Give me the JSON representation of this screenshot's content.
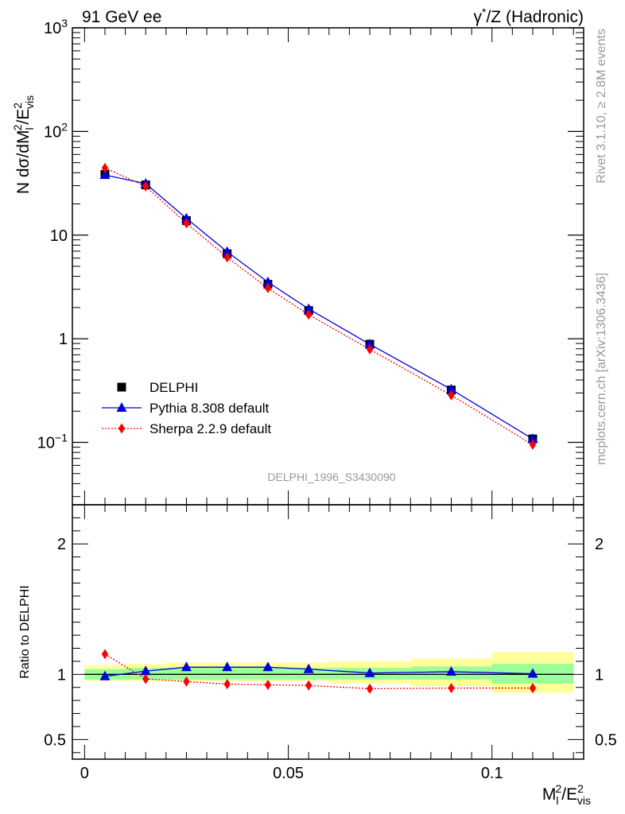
{
  "header": {
    "left": "91 GeV ee",
    "right_sup": "*",
    "right_main": "γ",
    "right_rest": "/Z (Hadronic)"
  },
  "side_text": {
    "top": "Rivet 3.1.10, ≥ 2.8M events",
    "bottom": "mcplots.cern.ch [arXiv:1306.3436]"
  },
  "watermark": "DELPHI_1996_S3430090",
  "colors": {
    "data": "#000000",
    "pythia": "#0000dd",
    "sherpa": "#ff0000",
    "band_inner": "#99ff99",
    "band_outer": "#ffff99"
  },
  "chart_data": [
    {
      "type": "line",
      "panel": "main",
      "ylabel": "N dσ/dM_l^2/E_vis^2",
      "yscale": "log",
      "ylim": [
        0.025,
        1000
      ],
      "xlim": [
        -0.003,
        0.1225
      ],
      "y_tick_labels": [
        "10^-1",
        "1",
        "10",
        "10^2",
        "10^3"
      ],
      "x": [
        0.005,
        0.015,
        0.025,
        0.035,
        0.045,
        0.055,
        0.07,
        0.09,
        0.11
      ],
      "series": [
        {
          "name": "DELPHI",
          "marker": "square",
          "values": [
            38.5,
            30.5,
            13.8,
            6.6,
            3.35,
            1.87,
            0.885,
            0.32,
            0.108
          ]
        },
        {
          "name": "Pythia 8.308 default",
          "marker": "triangle",
          "values": [
            38.0,
            31.4,
            14.5,
            6.9,
            3.52,
            1.94,
            0.885,
            0.325,
            0.108
          ]
        },
        {
          "name": "Sherpa 2.2.9 default",
          "marker": "diamond",
          "values": [
            44.5,
            29.5,
            13.0,
            6.1,
            3.08,
            1.71,
            0.79,
            0.285,
            0.095
          ]
        }
      ],
      "legend_position": "lower-left"
    },
    {
      "type": "line",
      "panel": "ratio",
      "ylabel": "Ratio to DELPHI",
      "ylim": [
        0.35,
        2.3
      ],
      "y_tick_labels": [
        "0.5",
        "1",
        "2"
      ],
      "xlabel": "M_l^2/E_vis^2",
      "x_tick_labels": [
        "0",
        "0.05",
        "0.1"
      ],
      "bin_edges": [
        0,
        0.01,
        0.02,
        0.03,
        0.04,
        0.05,
        0.06,
        0.08,
        0.1,
        0.12
      ],
      "band_inner": [
        [
          0.96,
          1.04
        ],
        [
          0.96,
          1.05
        ],
        [
          0.96,
          1.05
        ],
        [
          0.96,
          1.05
        ],
        [
          0.96,
          1.05
        ],
        [
          0.96,
          1.05
        ],
        [
          0.96,
          1.05
        ],
        [
          0.96,
          1.06
        ],
        [
          0.93,
          1.08
        ]
      ],
      "band_outer": [
        [
          0.95,
          1.07
        ],
        [
          0.95,
          1.08
        ],
        [
          0.95,
          1.09
        ],
        [
          0.95,
          1.09
        ],
        [
          0.95,
          1.09
        ],
        [
          0.95,
          1.09
        ],
        [
          0.93,
          1.1
        ],
        [
          0.91,
          1.12
        ],
        [
          0.86,
          1.17
        ]
      ],
      "x": [
        0.005,
        0.015,
        0.025,
        0.035,
        0.045,
        0.055,
        0.07,
        0.09,
        0.11
      ],
      "series": [
        {
          "name": "Pythia 8.308 default",
          "marker": "triangle",
          "values": [
            0.985,
            1.025,
            1.055,
            1.055,
            1.055,
            1.04,
            1.01,
            1.02,
            1.005
          ]
        },
        {
          "name": "Sherpa 2.2.9 default",
          "marker": "diamond",
          "values": [
            1.155,
            0.965,
            0.945,
            0.925,
            0.92,
            0.915,
            0.89,
            0.895,
            0.895
          ]
        }
      ]
    }
  ]
}
